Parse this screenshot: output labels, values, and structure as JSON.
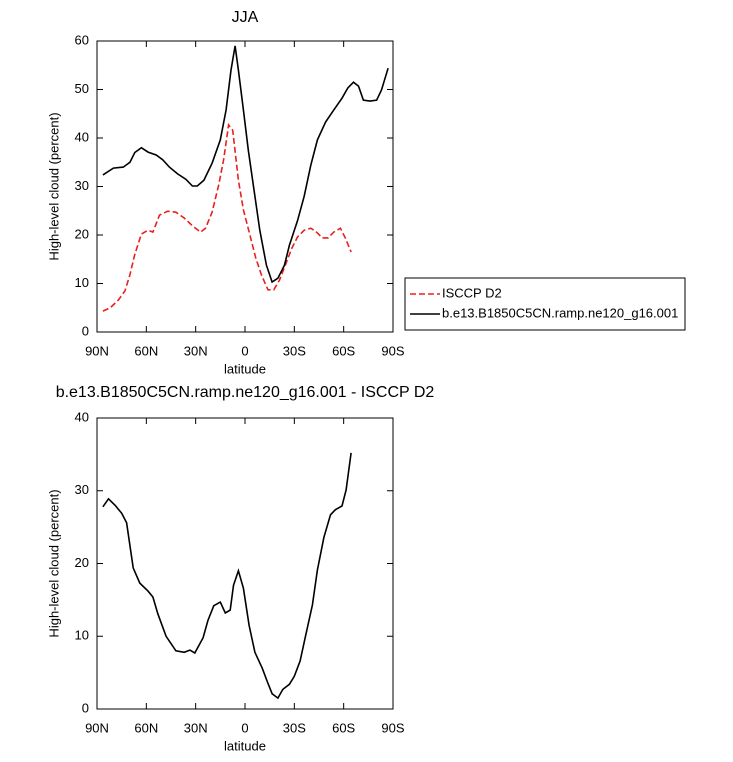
{
  "chart_data": [
    {
      "type": "line",
      "title": "JJA",
      "x_label": "latitude",
      "y_label": "High-level cloud (percent)",
      "xlim": [
        90,
        -90
      ],
      "ylim": [
        0,
        60
      ],
      "xticks": [
        {
          "value": 90,
          "label": "90N"
        },
        {
          "value": 60,
          "label": "60N"
        },
        {
          "value": 30,
          "label": "30N"
        },
        0,
        {
          "value": -30,
          "label": "30S"
        },
        {
          "value": -60,
          "label": "60S"
        },
        {
          "value": -90,
          "label": "90S"
        }
      ],
      "yticks": [
        0,
        10,
        20,
        30,
        40,
        50,
        60
      ],
      "legend": "right",
      "series": [
        {
          "name": "ISCCP D2",
          "color": "#e8201e",
          "dashed": true,
          "x": [
            86.4,
            82,
            77,
            73,
            70,
            67,
            63,
            59,
            56,
            52,
            47,
            42,
            37,
            32,
            27,
            24,
            20,
            16,
            13,
            10,
            7.5,
            4,
            1,
            -3,
            -6.5,
            -10,
            -14,
            -17.5,
            -21,
            -25,
            -28.5,
            -32,
            -36,
            -40,
            -43.5,
            -47,
            -50.5,
            -54,
            -58,
            -61,
            -64.5
          ],
          "values": [
            4.3,
            5,
            6.6,
            8.5,
            11.8,
            16,
            20.2,
            21,
            20.6,
            24.1,
            24.9,
            24.7,
            23.5,
            21.9,
            20.6,
            21.4,
            24.7,
            30.3,
            35.5,
            42.7,
            41.6,
            31.3,
            25.2,
            20,
            15.3,
            11.8,
            8.7,
            8.7,
            10.7,
            14.2,
            17.3,
            19.6,
            21,
            21.4,
            20.6,
            19.4,
            19.4,
            20.6,
            21.4,
            19.4,
            16.5
          ]
        },
        {
          "name": "b.e13.B1850C5CN.ramp.ne120_g16.001",
          "color": "#000000",
          "dashed": false,
          "x": [
            86.4,
            80,
            74,
            70,
            67,
            63,
            59,
            54,
            50,
            46,
            41,
            36,
            32,
            29,
            25,
            20,
            15,
            11.5,
            8.5,
            6,
            4,
            1,
            -2,
            -5.5,
            -9,
            -13,
            -16.5,
            -20,
            -24,
            -27,
            -32,
            -36,
            -40,
            -44,
            -49,
            -54,
            -59,
            -62.5,
            -66,
            -69,
            -72,
            -76,
            -80,
            -83,
            -87
          ],
          "values": [
            32.4,
            33.8,
            34,
            35,
            37,
            38,
            37.1,
            36.5,
            35.5,
            34,
            32.6,
            31.5,
            30.1,
            30.1,
            31.3,
            34.8,
            39.6,
            45.8,
            54,
            59,
            54,
            45.8,
            37.5,
            29.3,
            21,
            13.8,
            10.3,
            11.1,
            13.8,
            17.9,
            23,
            28,
            34.4,
            39.6,
            43.3,
            45.8,
            48.2,
            50.3,
            51.5,
            50.7,
            47.8,
            47.6,
            47.8,
            49.9,
            54.4
          ]
        }
      ]
    },
    {
      "type": "line",
      "title": "b.e13.B1850C5CN.ramp.ne120_g16.001 - ISCCP D2",
      "x_label": "latitude",
      "y_label": "High-level cloud (percent)",
      "xlim": [
        90,
        -90
      ],
      "ylim": [
        0,
        40
      ],
      "xticks": [
        {
          "value": 90,
          "label": "90N"
        },
        {
          "value": 60,
          "label": "60N"
        },
        {
          "value": 30,
          "label": "30N"
        },
        0,
        {
          "value": -30,
          "label": "30S"
        },
        {
          "value": -60,
          "label": "60S"
        },
        {
          "value": -90,
          "label": "90S"
        }
      ],
      "yticks": [
        0,
        10,
        20,
        30,
        40
      ],
      "series": [
        {
          "color": "#000000",
          "dashed": false,
          "x": [
            86.4,
            83,
            79,
            75,
            72,
            68,
            64,
            59,
            56,
            53,
            48,
            42,
            37,
            33.5,
            30.5,
            25.5,
            22.5,
            19,
            15,
            12,
            9,
            7,
            4,
            1,
            -2.5,
            -6,
            -10.5,
            -13.5,
            -16.5,
            -20,
            -23,
            -27,
            -30,
            -33.5,
            -37,
            -41,
            -44,
            -48,
            -52,
            -55,
            -59,
            -61.5,
            -64.5
          ],
          "values": [
            27.8,
            28.9,
            28,
            26.9,
            25.6,
            19.4,
            17.3,
            16.2,
            15.4,
            13.1,
            10,
            8,
            7.8,
            8.1,
            7.7,
            9.8,
            12.2,
            14.2,
            14.7,
            13.2,
            13.6,
            17,
            19,
            16.6,
            11.5,
            7.8,
            5.6,
            3.8,
            2.1,
            1.5,
            2.7,
            3.4,
            4.5,
            6.6,
            10.2,
            14.3,
            19.1,
            23.6,
            26.7,
            27.4,
            27.9,
            30.1,
            35.2
          ]
        }
      ]
    }
  ]
}
